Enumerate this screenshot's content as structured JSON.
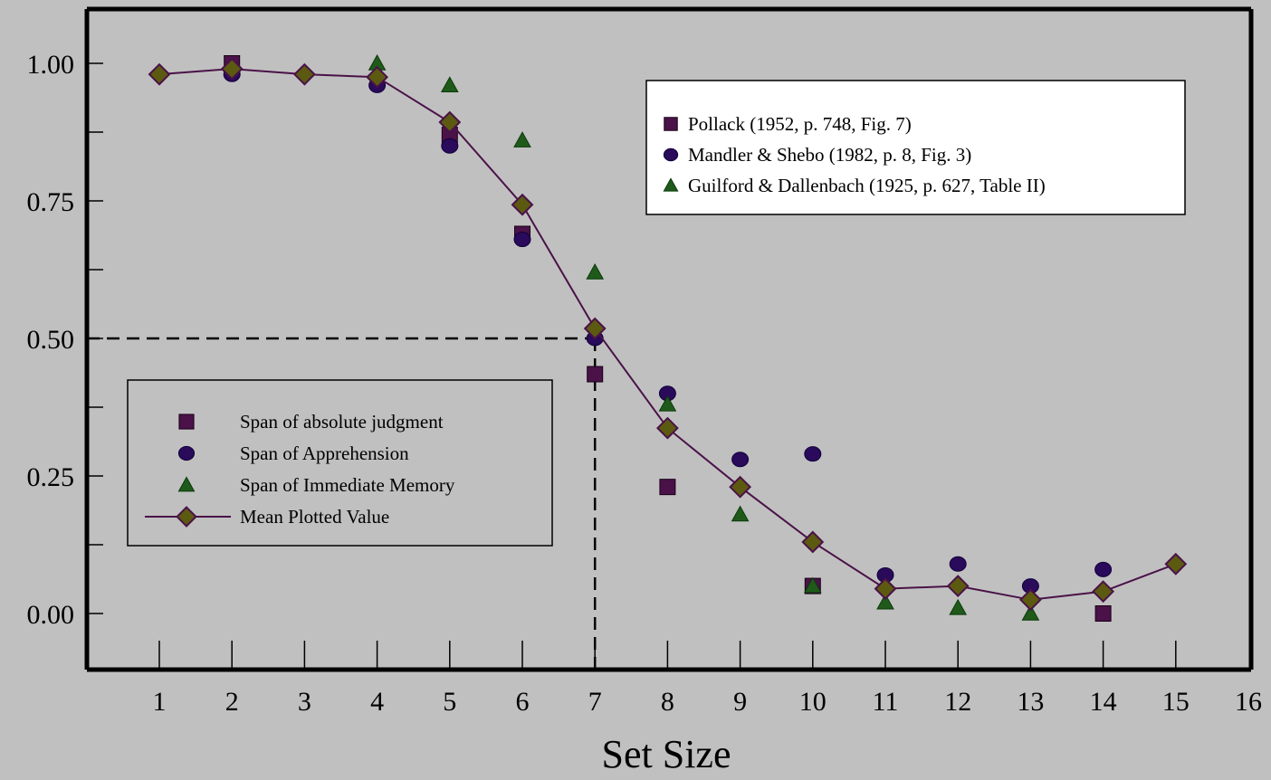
{
  "chart_data": {
    "type": "scatter",
    "title": "",
    "xlabel": "Set Size",
    "ylabel": "",
    "xlim": [
      0,
      16
    ],
    "ylim": [
      -0.1,
      1.1
    ],
    "x_ticks": [
      "1",
      "2",
      "3",
      "4",
      "5",
      "6",
      "7",
      "8",
      "9",
      "10",
      "11",
      "12",
      "13",
      "14",
      "15",
      "16"
    ],
    "y_ticks": [
      "0.00",
      "0.25",
      "0.50",
      "0.75",
      "1.00"
    ],
    "grid": false,
    "colors": {
      "square": "#4a1248",
      "circle": "#2a0a5a",
      "triangle": "#1f5a1a",
      "diamond": "#5c5a10",
      "line": "#4a1248",
      "background": "#c0c0c0"
    },
    "legend_sources": {
      "placement": "top-right",
      "entries": [
        {
          "marker": "square",
          "label": "Pollack (1952, p. 748, Fig. 7)"
        },
        {
          "marker": "circle",
          "label": "Mandler & Shebo (1982, p. 8, Fig. 3)"
        },
        {
          "marker": "triangle",
          "label": "Guilford & Dallenbach (1925, p. 627, Table II)"
        }
      ]
    },
    "legend_series": {
      "placement": "center-left",
      "entries": [
        {
          "marker": "square",
          "label": "Span of absolute judgment"
        },
        {
          "marker": "circle",
          "label": "Span of Apprehension"
        },
        {
          "marker": "triangle",
          "label": "Span of Immediate Memory"
        },
        {
          "marker": "line-diamond",
          "label": "Mean Plotted Value"
        }
      ]
    },
    "series": [
      {
        "name": "Span of absolute judgment",
        "marker": "square",
        "points": [
          [
            2,
            1.0
          ],
          [
            5,
            0.87
          ],
          [
            6,
            0.69
          ],
          [
            7,
            0.435
          ],
          [
            8,
            0.23
          ],
          [
            10,
            0.05
          ],
          [
            14,
            0.0
          ]
        ]
      },
      {
        "name": "Span of Apprehension",
        "marker": "circle",
        "points": [
          [
            2,
            0.98
          ],
          [
            4,
            0.96
          ],
          [
            5,
            0.85
          ],
          [
            6,
            0.68
          ],
          [
            7,
            0.5
          ],
          [
            8,
            0.4
          ],
          [
            9,
            0.28
          ],
          [
            10,
            0.29
          ],
          [
            11,
            0.07
          ],
          [
            12,
            0.09
          ],
          [
            13,
            0.05
          ],
          [
            14,
            0.08
          ]
        ]
      },
      {
        "name": "Span of Immediate Memory",
        "marker": "triangle",
        "points": [
          [
            4,
            1.0
          ],
          [
            5,
            0.96
          ],
          [
            6,
            0.86
          ],
          [
            7,
            0.62
          ],
          [
            8,
            0.38
          ],
          [
            9,
            0.18
          ],
          [
            10,
            0.05
          ],
          [
            11,
            0.02
          ],
          [
            12,
            0.01
          ],
          [
            13,
            0.0
          ]
        ]
      },
      {
        "name": "Mean Plotted Value",
        "marker": "line-diamond",
        "points": [
          [
            1,
            0.98
          ],
          [
            2,
            0.99
          ],
          [
            3,
            0.98
          ],
          [
            4,
            0.975
          ],
          [
            5,
            0.893
          ],
          [
            6,
            0.743
          ],
          [
            7,
            0.518
          ],
          [
            8,
            0.337
          ],
          [
            9,
            0.23
          ],
          [
            10,
            0.13
          ],
          [
            11,
            0.045
          ],
          [
            12,
            0.05
          ],
          [
            13,
            0.025
          ],
          [
            14,
            0.04
          ],
          [
            15,
            0.09
          ]
        ]
      }
    ],
    "reference_lines": [
      {
        "style": "dashed",
        "from": [
          0,
          0.5
        ],
        "to": [
          7,
          0.5
        ]
      },
      {
        "style": "dashed",
        "from": [
          7,
          0.5
        ],
        "to": [
          7,
          -0.1
        ]
      }
    ]
  }
}
